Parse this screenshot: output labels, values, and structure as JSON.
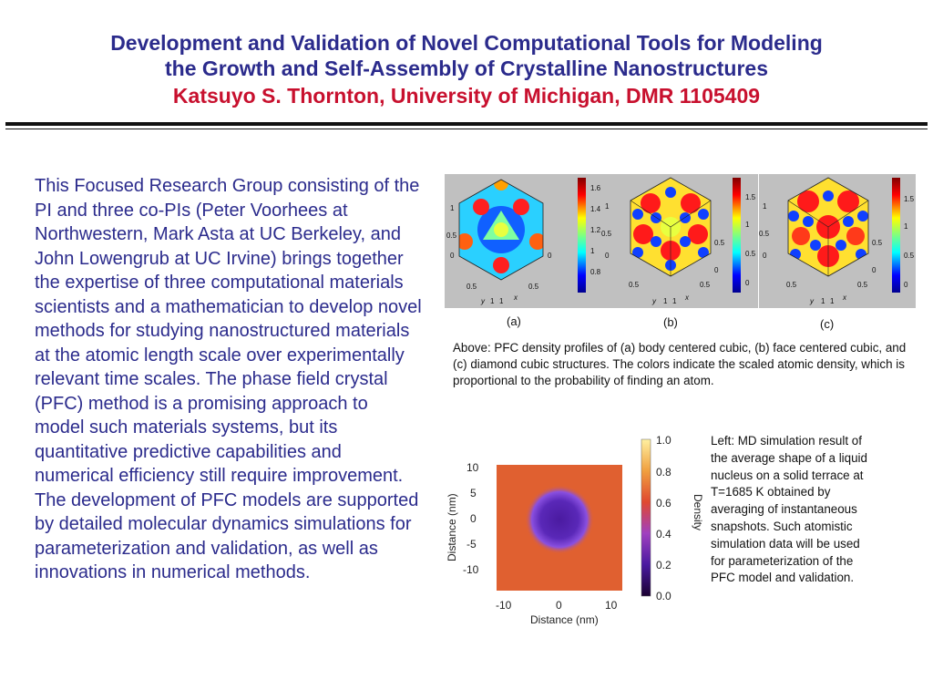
{
  "header": {
    "title_line1": "Development and Validation of Novel Computational Tools for Modeling",
    "title_line2": "the Growth and Self-Assembly of Crystalline Nanostructures",
    "author_line": "Katsuyo S. Thornton, University of Michigan, DMR 1105409"
  },
  "body_text": "This Focused Research Group consisting of the PI and three co-PIs (Peter Voorhees at Northwestern, Mark Asta at UC Berkeley, and John Lowengrub at UC Irvine) brings together the expertise of three computational materials scientists and a mathematician to develop novel methods for studying nanostructured materials at the atomic length scale over experimentally relevant time scales.  The phase field crystal (PFC) method is a promising approach to model such materials systems, but its quantitative predictive capabilities and numerical efficiency still require improvement.  The development of PFC models are supported by detailed molecular dynamics simulations for parameterization and validation, as well as innovations in numerical methods.",
  "pfc_figure": {
    "panels": [
      {
        "label": "(a)",
        "colorbar_ticks": [
          "1.6",
          "1.4",
          "1.2",
          "1",
          "0.8"
        ]
      },
      {
        "label": "(b)",
        "colorbar_ticks": [
          "1.5",
          "1",
          "0.5",
          "0"
        ]
      },
      {
        "label": "(c)",
        "colorbar_ticks": [
          "1.5",
          "1",
          "0.5",
          "0"
        ]
      }
    ],
    "axis_ticks_left": [
      "1",
      "0.5",
      "0"
    ],
    "axis_ticks_right": [
      "0.5",
      "0"
    ],
    "axis_ticks_bottom": [
      "0.5",
      "0.5",
      "1",
      "1"
    ],
    "axis_x_name": "x",
    "axis_y_name": "y",
    "caption": "Above: PFC density profiles of (a) body centered cubic, (b) face centered cubic, and (c) diamond cubic structures.  The colors indicate the scaled atomic density, which is proportional to the probability of finding an atom."
  },
  "md_figure": {
    "xlabel": "Distance (nm)",
    "ylabel": "Distance (nm)",
    "colorbar_label": "Density",
    "x_ticks": [
      "-10",
      "0",
      "10"
    ],
    "y_ticks": [
      "10",
      "5",
      "0",
      "-5",
      "-10"
    ],
    "colorbar_ticks": [
      "1.0",
      "0.8",
      "0.6",
      "0.4",
      "0.2",
      "0.0"
    ],
    "caption": "Left: MD simulation result of the average shape of a liquid nucleus on a solid terrace at T=1685 K obtained by averaging of instantaneous snapshots. Such atomistic simulation data will be used for parameterization of the PFC model and validation."
  },
  "colors": {
    "title_blue": "#2b2b8c",
    "author_red": "#c8102e",
    "panel_gray": "#c0c0c0",
    "md_background": "#e06030",
    "nucleus": "#6a35c8"
  }
}
